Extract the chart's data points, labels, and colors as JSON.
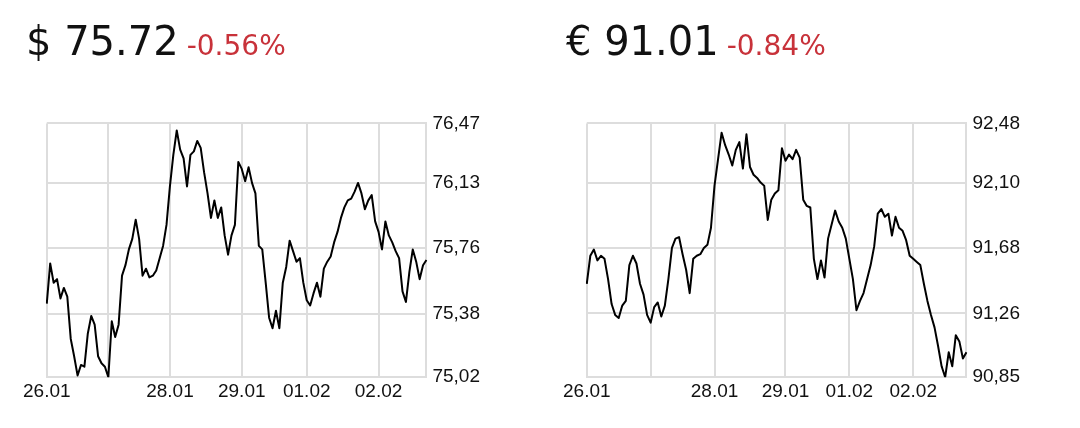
{
  "chart_data": [
    {
      "type": "line",
      "title": "$ 75.72",
      "subtitle": "-0.56%",
      "grid": true,
      "marker": "none",
      "categories": [
        "26.01",
        null,
        null,
        null,
        null,
        null,
        null,
        null,
        null,
        null,
        null,
        null,
        null,
        null,
        null,
        null,
        null,
        null,
        null,
        null,
        null,
        null,
        null,
        null,
        null,
        null,
        null,
        null,
        null,
        null,
        null,
        null,
        null,
        null,
        null,
        null,
        "28.01",
        null,
        null,
        null,
        null,
        null,
        null,
        null,
        null,
        null,
        null,
        null,
        null,
        null,
        null,
        null,
        null,
        null,
        null,
        null,
        null,
        "29.01",
        null,
        null,
        null,
        null,
        null,
        null,
        null,
        null,
        null,
        null,
        null,
        null,
        null,
        null,
        null,
        null,
        null,
        null,
        "01.02",
        null,
        null,
        null,
        null,
        null,
        null,
        null,
        null,
        null,
        null,
        null,
        null,
        null,
        null,
        null,
        null,
        null,
        null,
        null,
        null,
        "02.02",
        null,
        null,
        null,
        null,
        null,
        null,
        null,
        null,
        null,
        null,
        null,
        null,
        null,
        null
      ],
      "ylim": [
        75.02,
        76.47
      ],
      "yticks": [
        {
          "value": 75.02,
          "label": "75,02"
        },
        {
          "value": 75.38,
          "label": "75,38"
        },
        {
          "value": 75.76,
          "label": "75,76"
        },
        {
          "value": 76.13,
          "label": "76,13"
        },
        {
          "value": 76.47,
          "label": "76,47"
        }
      ],
      "series": [
        {
          "color": "#000000",
          "values": [
            75.44,
            75.67,
            75.56,
            75.58,
            75.47,
            75.53,
            75.48,
            75.24,
            75.14,
            75.03,
            75.09,
            75.08,
            75.27,
            75.37,
            75.32,
            75.14,
            75.1,
            75.08,
            75.02,
            75.34,
            75.25,
            75.32,
            75.6,
            75.66,
            75.75,
            75.81,
            75.92,
            75.81,
            75.6,
            75.64,
            75.59,
            75.6,
            75.63,
            75.7,
            75.77,
            75.89,
            76.11,
            76.29,
            76.43,
            76.32,
            76.27,
            76.11,
            76.29,
            76.31,
            76.37,
            76.33,
            76.19,
            76.07,
            75.93,
            76.03,
            75.93,
            75.99,
            75.83,
            75.72,
            75.83,
            75.89,
            76.25,
            76.21,
            76.14,
            76.22,
            76.13,
            76.07,
            75.77,
            75.75,
            75.56,
            75.36,
            75.3,
            75.4,
            75.3,
            75.56,
            75.65,
            75.8,
            75.74,
            75.68,
            75.7,
            75.56,
            75.46,
            75.43,
            75.5,
            75.56,
            75.48,
            75.64,
            75.68,
            75.71,
            75.79,
            75.85,
            75.93,
            75.99,
            76.03,
            76.04,
            76.08,
            76.13,
            76.07,
            75.98,
            76.03,
            76.06,
            75.91,
            75.85,
            75.75,
            75.91,
            75.83,
            75.79,
            75.74,
            75.7,
            75.51,
            75.45,
            75.62,
            75.75,
            75.68,
            75.58,
            75.66,
            75.69
          ]
        }
      ]
    },
    {
      "type": "line",
      "title": "€ 91.01",
      "subtitle": "-0.84%",
      "grid": true,
      "marker": "none",
      "categories": [
        "26.01",
        null,
        null,
        null,
        null,
        null,
        null,
        null,
        null,
        null,
        null,
        null,
        null,
        null,
        null,
        null,
        null,
        null,
        null,
        null,
        null,
        null,
        null,
        null,
        null,
        null,
        null,
        null,
        null,
        null,
        null,
        null,
        null,
        null,
        null,
        null,
        "28.01",
        null,
        null,
        null,
        null,
        null,
        null,
        null,
        null,
        null,
        null,
        null,
        null,
        null,
        null,
        null,
        null,
        null,
        null,
        null,
        "29.01",
        null,
        null,
        null,
        null,
        null,
        null,
        null,
        null,
        null,
        null,
        null,
        null,
        null,
        null,
        null,
        null,
        null,
        "01.02",
        null,
        null,
        null,
        null,
        null,
        null,
        null,
        null,
        null,
        null,
        null,
        null,
        null,
        null,
        null,
        null,
        null,
        "02.02",
        null,
        null,
        null,
        null,
        null,
        null,
        null,
        null,
        null,
        null,
        null,
        null,
        null,
        null,
        null
      ],
      "ylim": [
        90.85,
        92.48
      ],
      "yticks": [
        {
          "value": 90.85,
          "label": "90,85"
        },
        {
          "value": 91.26,
          "label": "91,26"
        },
        {
          "value": 91.68,
          "label": "91,68"
        },
        {
          "value": 92.1,
          "label": "92,10"
        },
        {
          "value": 92.48,
          "label": "92,48"
        }
      ],
      "series": [
        {
          "color": "#000000",
          "values": [
            91.45,
            91.63,
            91.67,
            91.6,
            91.63,
            91.61,
            91.48,
            91.32,
            91.25,
            91.23,
            91.31,
            91.34,
            91.57,
            91.63,
            91.58,
            91.45,
            91.38,
            91.25,
            91.2,
            91.3,
            91.33,
            91.24,
            91.31,
            91.48,
            91.68,
            91.74,
            91.75,
            91.64,
            91.54,
            91.39,
            91.61,
            91.63,
            91.64,
            91.68,
            91.7,
            91.81,
            92.08,
            92.25,
            92.42,
            92.34,
            92.28,
            92.21,
            92.31,
            92.36,
            92.19,
            92.41,
            92.2,
            92.15,
            92.13,
            92.1,
            92.08,
            91.86,
            91.99,
            92.03,
            92.05,
            92.32,
            92.24,
            92.28,
            92.25,
            92.31,
            92.26,
            91.99,
            91.95,
            91.94,
            91.61,
            91.48,
            91.6,
            91.49,
            91.74,
            91.83,
            91.92,
            91.85,
            91.81,
            91.74,
            91.61,
            91.48,
            91.28,
            91.34,
            91.39,
            91.48,
            91.57,
            91.69,
            91.9,
            91.93,
            91.88,
            91.9,
            91.76,
            91.88,
            91.81,
            91.79,
            91.73,
            91.63,
            91.61,
            91.59,
            91.57,
            91.45,
            91.34,
            91.25,
            91.17,
            91.05,
            90.92,
            90.85,
            91.01,
            90.92,
            91.12,
            91.08,
            90.97,
            91.01
          ]
        }
      ]
    }
  ]
}
